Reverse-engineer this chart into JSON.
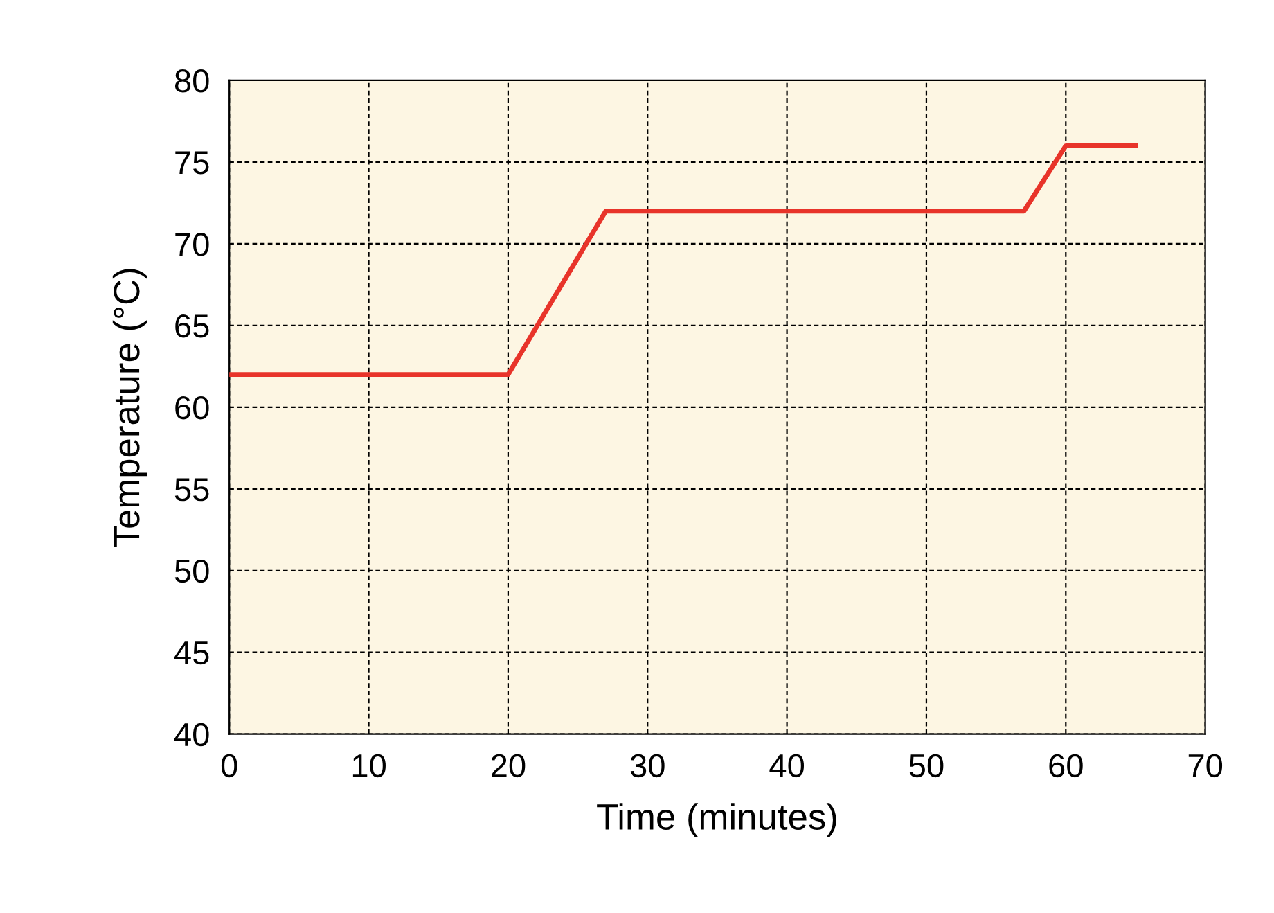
{
  "chart_data": {
    "type": "line",
    "xlabel": "Time (minutes)",
    "ylabel": "Temperature (°C)",
    "x": [
      0,
      20,
      27,
      57,
      60,
      65
    ],
    "series": [
      {
        "color": "#e8342a",
        "values": [
          62,
          62,
          72,
          72,
          76,
          76
        ]
      }
    ],
    "xlim": [
      0,
      70
    ],
    "xticks": [
      0,
      10,
      20,
      30,
      40,
      50,
      60,
      70
    ],
    "ylim": [
      40,
      80
    ],
    "yticks": [
      40,
      45,
      50,
      55,
      60,
      65,
      70,
      75,
      80
    ],
    "grid": true,
    "line_style": "solid",
    "marker": "none"
  }
}
